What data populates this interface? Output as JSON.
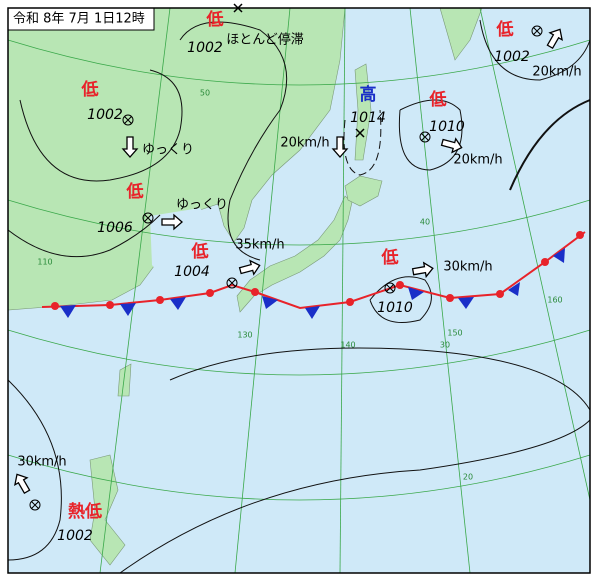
{
  "header": {
    "title": "令和 8年 7月 1日12時"
  },
  "systems": [
    {
      "label": "低",
      "pressure": 1002,
      "motion": "ほとんど停滞"
    },
    {
      "label": "低",
      "pressure": 1002,
      "motion": "ゆっくり"
    },
    {
      "label": "低",
      "pressure": 1006,
      "motion": "ゆっくり"
    },
    {
      "label": "低",
      "pressure": 1004,
      "motion": "35km/h"
    },
    {
      "label": "高",
      "pressure": 1014,
      "motion": "20km/h"
    },
    {
      "label": "低",
      "pressure": 1010,
      "motion": "20km/h"
    },
    {
      "label": "低",
      "pressure": 1010,
      "motion": "30km/h"
    },
    {
      "label": "低",
      "pressure": 1002,
      "motion": "20km/h"
    },
    {
      "label": "熱低",
      "pressure": 1002,
      "motion": "30km/h"
    }
  ],
  "grid_labels": {
    "latitude": [
      "50",
      "40",
      "30",
      "20"
    ],
    "longitude": [
      "110",
      "130",
      "140",
      "150",
      "160"
    ]
  }
}
